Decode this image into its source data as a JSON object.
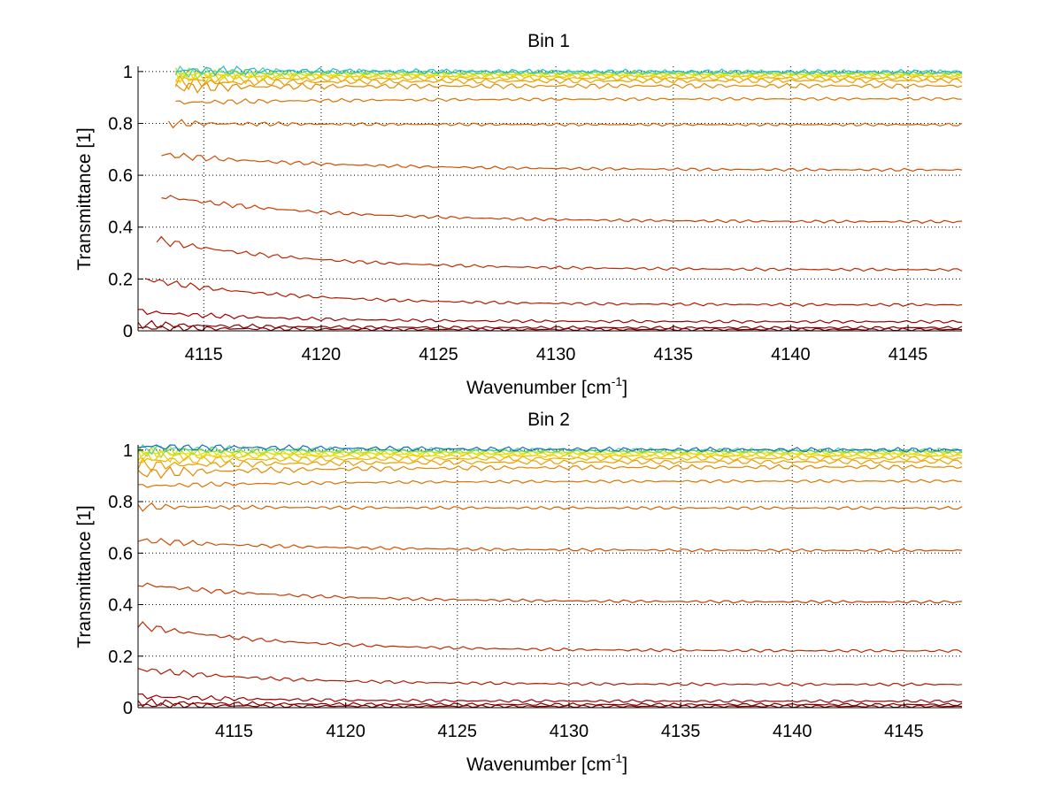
{
  "chart_data": [
    {
      "type": "line",
      "title": "Bin 1",
      "xlabel": "Wavenumber [cm",
      "xlabel_sup": "-1",
      "xlabel_end": "]",
      "ylabel": "Transmittance [1]",
      "xlim": [
        4112.2,
        4147.3
      ],
      "ylim": [
        0,
        1.02
      ],
      "xticks": [
        4115,
        4120,
        4125,
        4130,
        4135,
        4140,
        4145
      ],
      "xtick_labels": [
        "4115",
        "4120",
        "4125",
        "4130",
        "4135",
        "4140",
        "4145"
      ],
      "yticks": [
        0,
        0.2,
        0.4,
        0.6,
        0.8,
        1
      ],
      "ytick_labels": [
        "0",
        "0.2",
        "0.4",
        "0.6",
        "0.8",
        "1"
      ],
      "grid": true,
      "x_start": [
        4112.2,
        4112.2,
        4112.2,
        4112.5,
        4113.0,
        4113.2,
        4113.2,
        4113.5,
        4113.8,
        4113.8,
        4113.8,
        4113.8,
        4113.8,
        4113.8,
        4113.8,
        4113.8,
        4113.8,
        4113.8
      ],
      "x_end": 4147.3,
      "series": [
        {
          "start": 0.012,
          "end": 0.005,
          "color": "#7a0000"
        },
        {
          "start": 0.025,
          "end": 0.012,
          "color": "#8a0000"
        },
        {
          "start": 0.075,
          "end": 0.035,
          "color": "#a00000"
        },
        {
          "start": 0.2,
          "end": 0.1,
          "color": "#b21a00"
        },
        {
          "start": 0.35,
          "end": 0.235,
          "color": "#c02a00"
        },
        {
          "start": 0.52,
          "end": 0.42,
          "color": "#c83a00"
        },
        {
          "start": 0.68,
          "end": 0.62,
          "color": "#d04e00"
        },
        {
          "start": 0.8,
          "end": 0.795,
          "color": "#d65f00"
        },
        {
          "start": 0.88,
          "end": 0.895,
          "color": "#dc7200"
        },
        {
          "start": 0.94,
          "end": 0.945,
          "color": "#e38800"
        },
        {
          "start": 0.955,
          "end": 0.965,
          "color": "#e89e00"
        },
        {
          "start": 0.97,
          "end": 0.975,
          "color": "#edb400"
        },
        {
          "start": 0.98,
          "end": 0.982,
          "color": "#f2c800"
        },
        {
          "start": 0.985,
          "end": 0.988,
          "color": "#f0dc00"
        },
        {
          "start": 0.99,
          "end": 0.992,
          "color": "#d8e600"
        },
        {
          "start": 0.995,
          "end": 0.995,
          "color": "#a0e040"
        },
        {
          "start": 1.0,
          "end": 0.997,
          "color": "#50d090"
        },
        {
          "start": 1.005,
          "end": 0.998,
          "color": "#20b8d8"
        }
      ]
    },
    {
      "type": "line",
      "title": "Bin 2",
      "xlabel": "Wavenumber [cm",
      "xlabel_sup": "-1",
      "xlabel_end": "]",
      "ylabel": "Transmittance [1]",
      "xlim": [
        4110.7,
        4147.6
      ],
      "ylim": [
        0,
        1.02
      ],
      "xticks": [
        4115,
        4120,
        4125,
        4130,
        4135,
        4140,
        4145
      ],
      "xtick_labels": [
        "4115",
        "4120",
        "4125",
        "4130",
        "4135",
        "4140",
        "4145"
      ],
      "yticks": [
        0,
        0.2,
        0.4,
        0.6,
        0.8,
        1
      ],
      "ytick_labels": [
        "0",
        "0.2",
        "0.4",
        "0.6",
        "0.8",
        "1"
      ],
      "grid": true,
      "x_start": [
        4110.7,
        4110.7,
        4110.7,
        4110.7,
        4110.7,
        4110.7,
        4110.7,
        4110.7,
        4110.7,
        4110.7,
        4110.7,
        4110.7,
        4110.7,
        4110.7,
        4110.7,
        4110.7,
        4110.7,
        4110.7
      ],
      "x_end": 4147.6,
      "series": [
        {
          "start": 0.01,
          "end": 0.005,
          "color": "#7a0000"
        },
        {
          "start": 0.02,
          "end": 0.012,
          "color": "#8a0000"
        },
        {
          "start": 0.045,
          "end": 0.025,
          "color": "#a00000"
        },
        {
          "start": 0.15,
          "end": 0.09,
          "color": "#b21a00"
        },
        {
          "start": 0.32,
          "end": 0.22,
          "color": "#c02a00"
        },
        {
          "start": 0.48,
          "end": 0.41,
          "color": "#c83a00"
        },
        {
          "start": 0.65,
          "end": 0.61,
          "color": "#d04e00"
        },
        {
          "start": 0.78,
          "end": 0.775,
          "color": "#d65f00"
        },
        {
          "start": 0.86,
          "end": 0.88,
          "color": "#dc7200"
        },
        {
          "start": 0.91,
          "end": 0.935,
          "color": "#e38800"
        },
        {
          "start": 0.94,
          "end": 0.955,
          "color": "#e89e00"
        },
        {
          "start": 0.96,
          "end": 0.968,
          "color": "#edb400"
        },
        {
          "start": 0.975,
          "end": 0.978,
          "color": "#f2c800"
        },
        {
          "start": 0.985,
          "end": 0.985,
          "color": "#f0dc00"
        },
        {
          "start": 0.99,
          "end": 0.99,
          "color": "#d8e600"
        },
        {
          "start": 0.995,
          "end": 0.995,
          "color": "#a0e040"
        },
        {
          "start": 1.005,
          "end": 0.998,
          "color": "#50d090"
        },
        {
          "start": 1.015,
          "end": 1.0,
          "color": "#1070c0"
        }
      ]
    }
  ]
}
